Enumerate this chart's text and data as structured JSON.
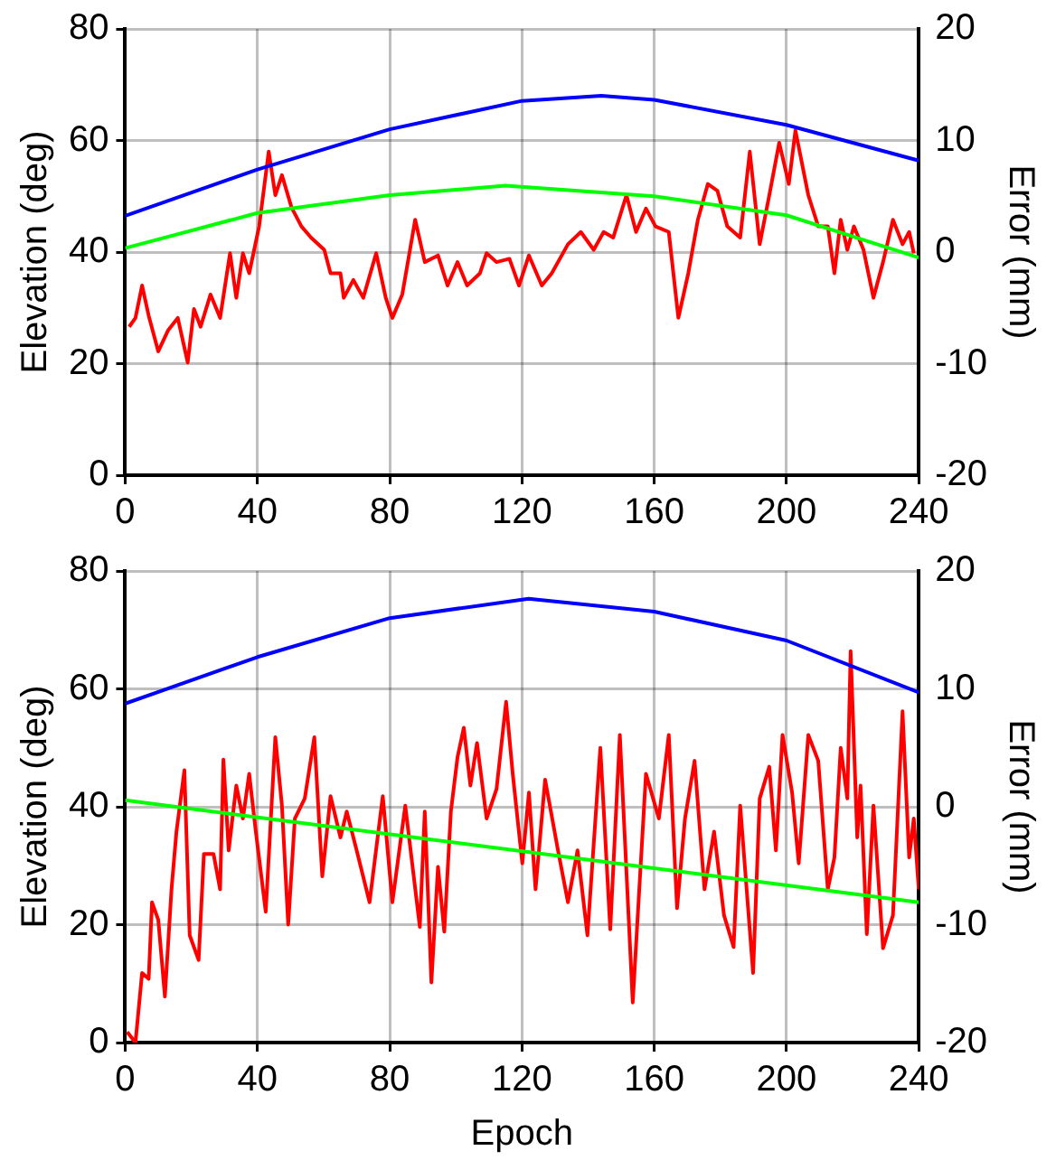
{
  "chart_data": [
    {
      "type": "line",
      "ylabel": "Elevation (deg)",
      "y2label": "Error (mm)",
      "xlim": [
        0,
        240
      ],
      "xticks": [
        0,
        40,
        80,
        120,
        160,
        200,
        240
      ],
      "ylim": [
        0,
        80
      ],
      "yticks": [
        0,
        20,
        40,
        60,
        80
      ],
      "y2lim": [
        -20,
        20
      ],
      "y2ticks": [
        -20,
        -10,
        0,
        10,
        20
      ],
      "grid": true,
      "legend": false,
      "marker": "none",
      "line_style": "solid",
      "series": [
        {
          "color": "#0000ff",
          "x": [
            0,
            40,
            80,
            120,
            144,
            160,
            200,
            240
          ],
          "values": [
            46.5,
            54.8,
            62,
            67.1,
            68,
            67.3,
            62.8,
            56.4
          ]
        },
        {
          "color": "#00ff00",
          "x": [
            0,
            40,
            80,
            115,
            160,
            200,
            240
          ],
          "values": [
            40.7,
            47,
            50.2,
            51.9,
            50,
            46.6,
            39
          ]
        },
        {
          "color": "#ff0000",
          "axis": "y2",
          "x": [
            1.2,
            3.1,
            5.1,
            7.1,
            10,
            13,
            15.9,
            18.9,
            20.8,
            22.8,
            25.8,
            28.7,
            31.7,
            33.6,
            35.6,
            37.5,
            40.5,
            43.4,
            45.4,
            47.4,
            50.3,
            53.3,
            56.2,
            60.2,
            62.1,
            65.1,
            66.1,
            69,
            72,
            75.9,
            78.8,
            80.8,
            83.8,
            87.7,
            90.6,
            94.6,
            97.5,
            100.5,
            103.4,
            107.3,
            109.3,
            112.3,
            116.2,
            119.1,
            122.1,
            126,
            129,
            133.9,
            137.8,
            141.7,
            144.7,
            147.6,
            151.6,
            154.5,
            157.5,
            160.4,
            164.4,
            167.3,
            170.3,
            173.2,
            176.2,
            179.1,
            182.1,
            186,
            188.9,
            191.9,
            194.8,
            197.8,
            200.7,
            202.7,
            206.6,
            209.6,
            212.5,
            214.5,
            216.4,
            218.4,
            220.4,
            223.3,
            226.3,
            229.2,
            232.2,
            235.1,
            237.1,
            238.5
          ],
          "values": [
            -6.7,
            -5.9,
            -3,
            -5.7,
            -8.9,
            -7,
            -5.9,
            -9.9,
            -5.1,
            -6.7,
            -3.8,
            -5.9,
            -0.1,
            -4.1,
            -0.1,
            -1.9,
            2.3,
            9,
            5.1,
            6.9,
            4,
            2.3,
            1.3,
            0.2,
            -1.9,
            -1.9,
            -4.1,
            -2.5,
            -4.1,
            -0.1,
            -4.1,
            -5.9,
            -3.8,
            2.9,
            -0.9,
            -0.3,
            -3,
            -0.9,
            -3,
            -1.9,
            -0.1,
            -0.9,
            -0.6,
            -3,
            -0.3,
            -3,
            -1.9,
            0.7,
            1.8,
            0.2,
            1.8,
            1.3,
            5.1,
            1.8,
            3.9,
            2.3,
            1.8,
            -5.9,
            -1.9,
            2.9,
            6.1,
            5.5,
            2.3,
            1.3,
            9,
            0.7,
            5.1,
            9.8,
            6.1,
            10.9,
            5.1,
            2.3,
            2.3,
            -1.9,
            2.9,
            0.2,
            2.3,
            0.2,
            -4.1,
            -0.9,
            2.9,
            0.7,
            1.8,
            -0.1
          ]
        }
      ]
    },
    {
      "type": "line",
      "xlabel": "Epoch",
      "ylabel": "Elevation (deg)",
      "y2label": "Error (mm)",
      "xlim": [
        0,
        240
      ],
      "xticks": [
        0,
        40,
        80,
        120,
        160,
        200,
        240
      ],
      "ylim": [
        0,
        80
      ],
      "yticks": [
        0,
        20,
        40,
        60,
        80
      ],
      "y2lim": [
        -20,
        20
      ],
      "y2ticks": [
        -20,
        -10,
        0,
        10,
        20
      ],
      "grid": true,
      "legend": false,
      "marker": "none",
      "line_style": "solid",
      "series": [
        {
          "color": "#0000ff",
          "x": [
            0,
            40,
            80,
            122,
            160,
            200,
            240
          ],
          "values": [
            57.5,
            65.4,
            72,
            75.3,
            73.1,
            68.2,
            59.4
          ]
        },
        {
          "color": "#00ff00",
          "x": [
            0,
            240
          ],
          "values": [
            41.1,
            23.8
          ]
        },
        {
          "color": "#ff0000",
          "axis": "y2",
          "x": [
            0.6,
            3.1,
            5.1,
            7.1,
            8.1,
            10,
            12,
            14,
            15.5,
            17.9,
            19.5,
            22.2,
            23.8,
            26.7,
            28.7,
            29.7,
            31.3,
            33.6,
            35.6,
            37.5,
            39.5,
            42.5,
            45.4,
            47.4,
            49.3,
            51.3,
            54.3,
            57.2,
            59.6,
            62.1,
            65.1,
            67,
            70,
            73.9,
            77.9,
            80.8,
            84.7,
            89.1,
            90.6,
            92.6,
            94.6,
            96.5,
            98.5,
            100.5,
            102.4,
            104.4,
            106.4,
            109.3,
            112.3,
            115.2,
            117.2,
            120.1,
            122.1,
            124.1,
            127,
            130.9,
            133.9,
            136.8,
            139.8,
            143.7,
            146.7,
            149.6,
            153.5,
            157.5,
            161.4,
            164.4,
            166.9,
            169.3,
            172.2,
            175.2,
            178.1,
            181.1,
            184,
            186,
            189.9,
            191.9,
            194.8,
            196.8,
            198.8,
            201.7,
            203.7,
            206.6,
            209.6,
            212.5,
            214.5,
            216.4,
            218.4,
            219.4,
            221.4,
            222.4,
            224.3,
            226.3,
            229.2,
            232.2,
            235.1,
            237.1,
            238.5,
            240
          ],
          "values": [
            -19.1,
            -20,
            -14.1,
            -14.6,
            -8.1,
            -9.6,
            -16.1,
            -7,
            -2.1,
            3.1,
            -10.9,
            -13,
            -4,
            -4,
            -7,
            4,
            -3.7,
            1.8,
            -1,
            2.8,
            -2.1,
            -8.9,
            5.9,
            0.1,
            -10,
            -1,
            0.7,
            5.9,
            -5.9,
            0.9,
            -2.6,
            -0.4,
            -3.7,
            -8.1,
            0.9,
            -8.1,
            0.1,
            -10.2,
            -0.4,
            -14.9,
            -5.1,
            -10.6,
            -0.4,
            4.2,
            6.7,
            1.8,
            5.4,
            -1,
            1.5,
            8.9,
            2.8,
            -4.8,
            1.2,
            -7,
            2.3,
            -3.7,
            -8.1,
            -3.7,
            -10.9,
            5,
            -10.4,
            6.1,
            -16.6,
            2.8,
            -1,
            6.1,
            -8.6,
            -1,
            3.9,
            -7,
            -2.1,
            -9.2,
            -11.9,
            0.1,
            -14.1,
            0.7,
            3.4,
            -3.7,
            6.1,
            1.2,
            -4.8,
            6.1,
            3.9,
            -7,
            -4.3,
            5,
            0.7,
            13.2,
            -2.6,
            1.8,
            -10.8,
            0.1,
            -12,
            -9.2,
            8.1,
            -4.3,
            -1,
            -7
          ]
        }
      ]
    }
  ]
}
